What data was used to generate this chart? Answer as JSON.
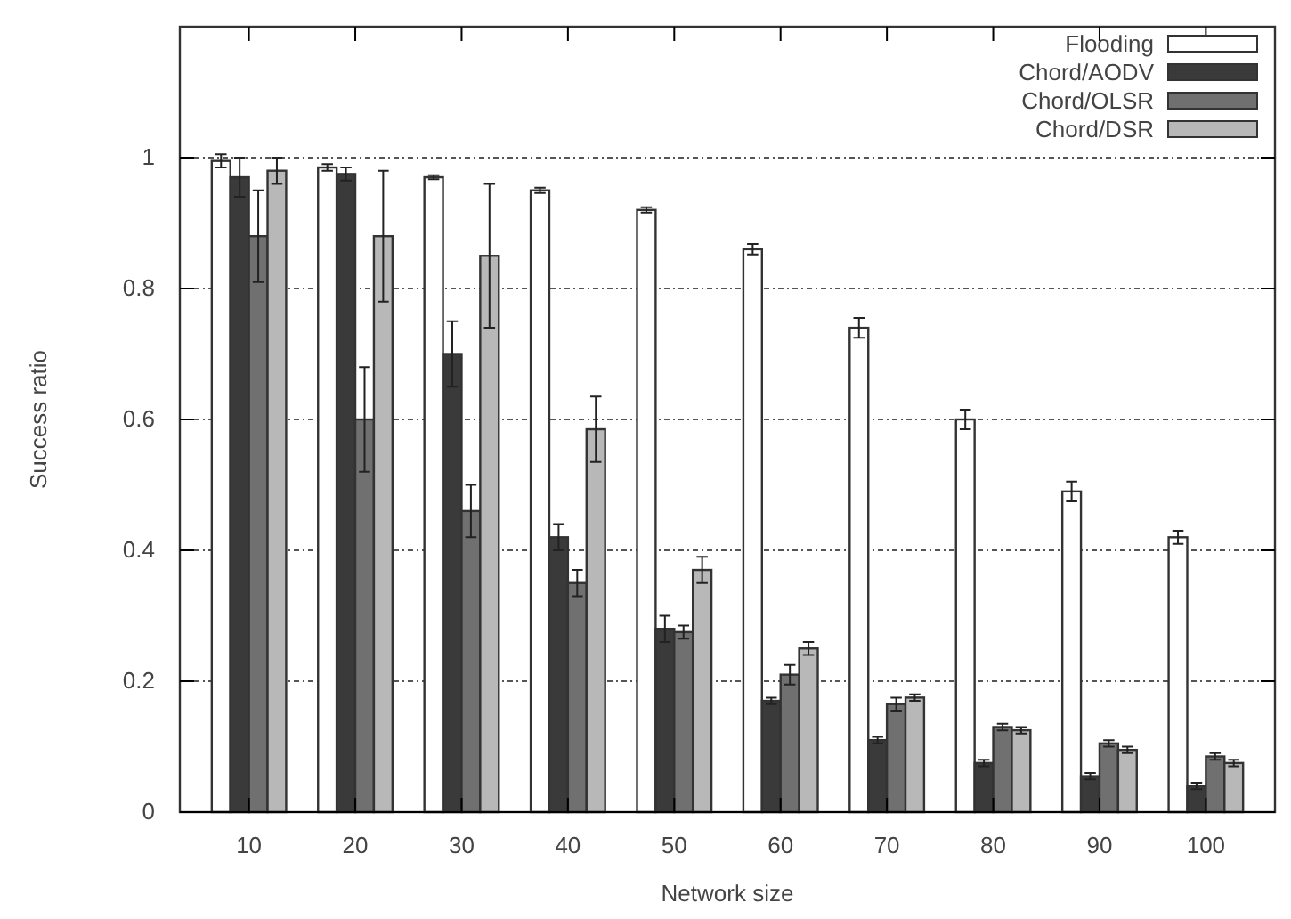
{
  "chart_data": {
    "type": "bar",
    "xlabel": "Network size",
    "ylabel": "Success ratio",
    "categories": [
      "10",
      "20",
      "30",
      "40",
      "50",
      "60",
      "70",
      "80",
      "90",
      "100"
    ],
    "series": [
      {
        "name": "Flooding",
        "color": "#ffffff",
        "values": [
          0.995,
          0.985,
          0.97,
          0.95,
          0.92,
          0.86,
          0.74,
          0.6,
          0.49,
          0.42
        ],
        "errors": [
          0.01,
          0.005,
          0.003,
          0.004,
          0.004,
          0.008,
          0.015,
          0.015,
          0.015,
          0.01
        ]
      },
      {
        "name": "Chord/AODV",
        "color": "#3a3a3a",
        "values": [
          0.97,
          0.975,
          0.7,
          0.42,
          0.28,
          0.17,
          0.11,
          0.075,
          0.055,
          0.04
        ],
        "errors": [
          0.03,
          0.01,
          0.05,
          0.02,
          0.02,
          0.005,
          0.005,
          0.005,
          0.005,
          0.005
        ]
      },
      {
        "name": "Chord/OLSR",
        "color": "#707070",
        "values": [
          0.88,
          0.6,
          0.46,
          0.35,
          0.275,
          0.21,
          0.165,
          0.13,
          0.105,
          0.085
        ],
        "errors": [
          0.07,
          0.08,
          0.04,
          0.02,
          0.01,
          0.015,
          0.01,
          0.005,
          0.005,
          0.005
        ]
      },
      {
        "name": "Chord/DSR",
        "color": "#b8b8b8",
        "values": [
          0.98,
          0.88,
          0.85,
          0.585,
          0.37,
          0.25,
          0.175,
          0.125,
          0.095,
          0.075
        ],
        "errors": [
          0.02,
          0.1,
          0.11,
          0.05,
          0.02,
          0.01,
          0.005,
          0.005,
          0.005,
          0.005
        ]
      }
    ],
    "ylim": [
      0,
      1.2
    ],
    "yticks": [
      0,
      0.2,
      0.4,
      0.6,
      0.8,
      1
    ],
    "grid": "y",
    "legend": "top right"
  }
}
